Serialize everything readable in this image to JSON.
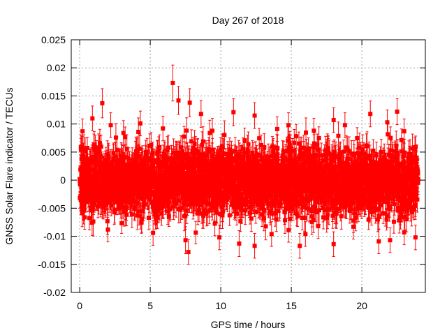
{
  "chart_data": {
    "type": "scatter",
    "title": "Day 267 of 2018",
    "xlabel": "GPS time / hours",
    "ylabel": "GNSS Solar Flare indicator / TECUs",
    "xlim": [
      -0.6,
      24.5
    ],
    "ylim": [
      -0.02,
      0.025
    ],
    "x_ticks": [
      0,
      5,
      10,
      15,
      20
    ],
    "x_tick_labels": [
      "0",
      "5",
      "10",
      "15",
      "20"
    ],
    "y_ticks": [
      -0.02,
      -0.015,
      -0.01,
      -0.005,
      0,
      0.005,
      0.01,
      0.015,
      0.02,
      0.025
    ],
    "y_tick_labels": [
      "-0.02",
      "-0.015",
      "-0.01",
      "-0.005",
      "0",
      "0.005",
      "0.01",
      "0.015",
      "0.02",
      "0.025"
    ],
    "grid": true,
    "legend": "none",
    "series": [
      {
        "name": "indicator",
        "color": "#ff0000",
        "marker": "square",
        "error_bars": true,
        "typical_error": 0.0022,
        "sampling_interval_hours": 0.0083,
        "x_range": [
          0,
          24
        ],
        "typical_spread": 0.003,
        "highlighted_points": [
          {
            "x": 6.6,
            "y": 0.0173,
            "err": 0.0032
          },
          {
            "x": 1.6,
            "y": 0.0137,
            "err": 0.0026
          },
          {
            "x": 7.0,
            "y": 0.0142,
            "err": 0.0025
          },
          {
            "x": 7.8,
            "y": 0.0138,
            "err": 0.0025
          },
          {
            "x": 0.9,
            "y": 0.011,
            "err": 0.0022
          },
          {
            "x": 10.9,
            "y": 0.0121,
            "err": 0.0024
          },
          {
            "x": 22.5,
            "y": 0.0122,
            "err": 0.0023
          },
          {
            "x": 18.0,
            "y": 0.0107,
            "err": 0.0022
          },
          {
            "x": 20.6,
            "y": 0.0118,
            "err": 0.0023
          },
          {
            "x": 4.3,
            "y": 0.0101,
            "err": 0.0022
          },
          {
            "x": 8.6,
            "y": 0.0118,
            "err": 0.0024
          },
          {
            "x": 12.4,
            "y": 0.0115,
            "err": 0.0023
          },
          {
            "x": 14.8,
            "y": 0.0098,
            "err": 0.0022
          },
          {
            "x": 7.7,
            "y": -0.0128,
            "err": 0.0022
          },
          {
            "x": 7.5,
            "y": -0.0107,
            "err": 0.0024
          },
          {
            "x": 11.3,
            "y": -0.0113,
            "err": 0.0023
          },
          {
            "x": 12.4,
            "y": -0.0117,
            "err": 0.0022
          },
          {
            "x": 15.6,
            "y": -0.0117,
            "err": 0.0022
          },
          {
            "x": 18.0,
            "y": -0.0114,
            "err": 0.0022
          },
          {
            "x": 21.2,
            "y": -0.0109,
            "err": 0.0022
          },
          {
            "x": 22.0,
            "y": -0.0107,
            "err": 0.0022
          },
          {
            "x": 23.8,
            "y": -0.0102,
            "err": 0.0022
          },
          {
            "x": 5.2,
            "y": -0.0094,
            "err": 0.0022
          },
          {
            "x": 9.9,
            "y": -0.0102,
            "err": 0.0022
          },
          {
            "x": 13.6,
            "y": -0.0096,
            "err": 0.0022
          },
          {
            "x": 16.0,
            "y": -0.0096,
            "err": 0.0022
          },
          {
            "x": 2.0,
            "y": -0.0088,
            "err": 0.0022
          },
          {
            "x": 3.1,
            "y": 0.0084,
            "err": 0.0022
          },
          {
            "x": 0.2,
            "y": 0.0087,
            "err": 0.0022
          },
          {
            "x": 2.2,
            "y": 0.0098,
            "err": 0.0022
          },
          {
            "x": 5.9,
            "y": 0.0092,
            "err": 0.0022
          },
          {
            "x": 9.4,
            "y": 0.0088,
            "err": 0.0022
          },
          {
            "x": 14.0,
            "y": 0.0091,
            "err": 0.0022
          },
          {
            "x": 16.6,
            "y": 0.0088,
            "err": 0.0022
          },
          {
            "x": 18.8,
            "y": 0.0098,
            "err": 0.0022
          },
          {
            "x": 21.8,
            "y": 0.0103,
            "err": 0.0022
          },
          {
            "x": 23.0,
            "y": 0.0087,
            "err": 0.0022
          },
          {
            "x": 19.4,
            "y": -0.0083,
            "err": 0.0022
          },
          {
            "x": 23.0,
            "y": -0.0093,
            "err": 0.0022
          },
          {
            "x": 16.9,
            "y": -0.0082,
            "err": 0.0022
          }
        ]
      }
    ]
  }
}
